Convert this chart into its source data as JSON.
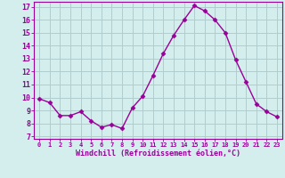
{
  "x": [
    0,
    1,
    2,
    3,
    4,
    5,
    6,
    7,
    8,
    9,
    10,
    11,
    12,
    13,
    14,
    15,
    16,
    17,
    18,
    19,
    20,
    21,
    22,
    23
  ],
  "y": [
    9.9,
    9.6,
    8.6,
    8.6,
    8.9,
    8.2,
    7.7,
    7.9,
    7.6,
    9.2,
    10.1,
    11.7,
    13.4,
    14.8,
    16.0,
    17.1,
    16.7,
    16.0,
    15.0,
    12.9,
    11.2,
    9.5,
    8.9,
    8.5
  ],
  "line_color": "#990099",
  "marker": "D",
  "marker_size": 2.5,
  "bg_color": "#d4eeee",
  "grid_color": "#b0cccc",
  "xlabel": "Windchill (Refroidissement éolien,°C)",
  "ylabel_ticks": [
    7,
    8,
    9,
    10,
    11,
    12,
    13,
    14,
    15,
    16,
    17
  ],
  "ylim": [
    6.8,
    17.4
  ],
  "xlim": [
    -0.5,
    23.5
  ],
  "xticks": [
    0,
    1,
    2,
    3,
    4,
    5,
    6,
    7,
    8,
    9,
    10,
    11,
    12,
    13,
    14,
    15,
    16,
    17,
    18,
    19,
    20,
    21,
    22,
    23
  ],
  "title": ""
}
